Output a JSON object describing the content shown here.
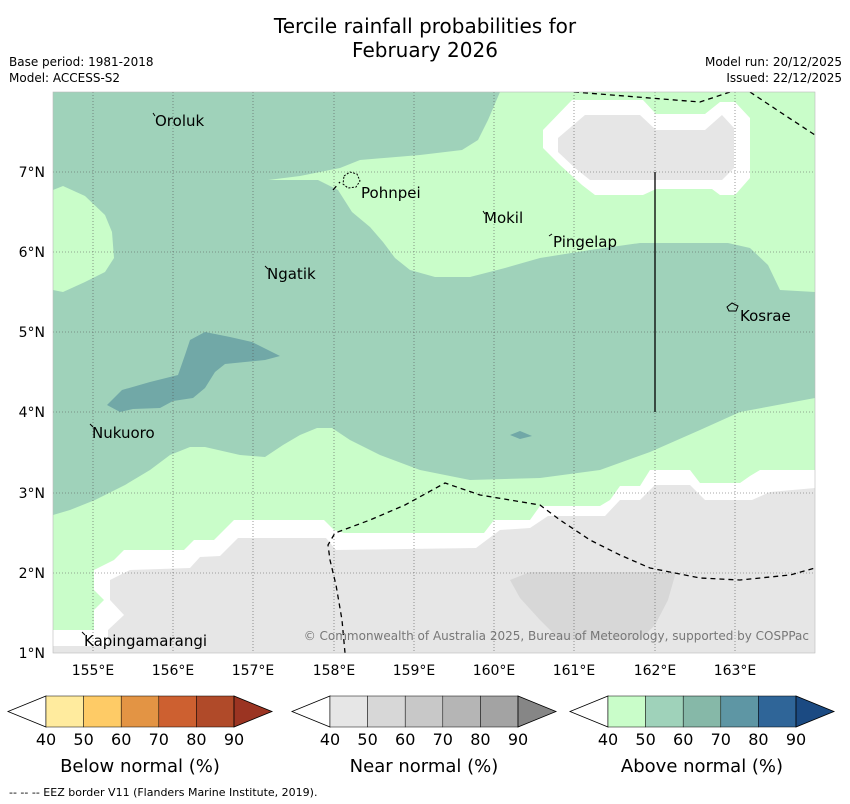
{
  "title_line1": "Tercile rainfall probabilities for",
  "title_line2": "February 2026",
  "meta": {
    "base_period": "Base period: 1981-2018",
    "model": "Model: ACCESS-S2",
    "model_run": "Model run: 20/12/2025",
    "issued": "Issued: 22/12/2025"
  },
  "axes": {
    "lon_labels": [
      "155°E",
      "156°E",
      "157°E",
      "158°E",
      "159°E",
      "160°E",
      "161°E",
      "162°E",
      "163°E"
    ],
    "lat_labels": [
      "7°N",
      "6°N",
      "5°N",
      "4°N",
      "3°N",
      "2°N",
      "1°N"
    ]
  },
  "places": [
    "Oroluk",
    "Pohnpei",
    "Mokil",
    "Pingelap",
    "Ngatik",
    "Kosrae",
    "Nukuoro",
    "Kapingamarangi"
  ],
  "copyright": "© Commonwealth of Australia 2025, Bureau of Meteorology, supported by COSPPac",
  "colorbars": [
    {
      "name": "below",
      "title": "Below normal (%)",
      "labels": [
        "40",
        "50",
        "60",
        "70",
        "80",
        "90"
      ],
      "colors": [
        "#ffffff",
        "#ffeb9e",
        "#fecb66",
        "#e39444",
        "#cd6030",
        "#b04a29",
        "#9b3422"
      ]
    },
    {
      "name": "near",
      "title": "Near normal (%)",
      "labels": [
        "40",
        "50",
        "60",
        "70",
        "80",
        "90"
      ],
      "colors": [
        "#ffffff",
        "#e6e6e6",
        "#d7d7d7",
        "#c8c8c8",
        "#b5b5b5",
        "#a3a3a3",
        "#868686"
      ]
    },
    {
      "name": "above",
      "title": "Above normal (%)",
      "labels": [
        "40",
        "50",
        "60",
        "70",
        "80",
        "90"
      ],
      "colors": [
        "#ffffff",
        "#c9fdc9",
        "#9fd2ba",
        "#86b8a8",
        "#5e96a4",
        "#2f6598",
        "#1b4a82"
      ]
    }
  ],
  "footnote": "--  --  -- EEZ border V11 (Flanders Marine Institute, 2019)."
}
